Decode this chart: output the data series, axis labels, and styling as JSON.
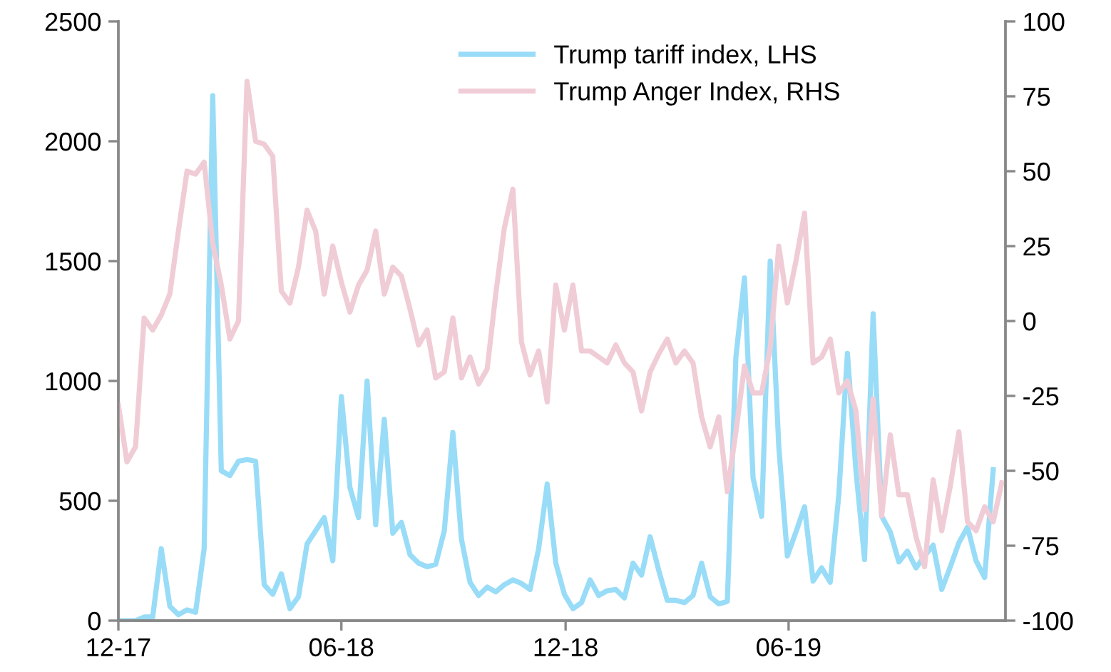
{
  "chart_data": {
    "type": "line",
    "x": [
      "2017-12-01",
      "2017-12-08",
      "2017-12-15",
      "2017-12-22",
      "2017-12-29",
      "2018-01-05",
      "2018-01-12",
      "2018-01-19",
      "2018-01-26",
      "2018-02-02",
      "2018-02-09",
      "2018-02-16",
      "2018-02-23",
      "2018-03-02",
      "2018-03-09",
      "2018-03-16",
      "2018-03-23",
      "2018-03-30",
      "2018-04-06",
      "2018-04-13",
      "2018-04-20",
      "2018-04-27",
      "2018-05-04",
      "2018-05-11",
      "2018-05-18",
      "2018-05-25",
      "2018-06-01",
      "2018-06-08",
      "2018-06-15",
      "2018-06-22",
      "2018-06-29",
      "2018-07-06",
      "2018-07-13",
      "2018-07-20",
      "2018-07-27",
      "2018-08-03",
      "2018-08-10",
      "2018-08-17",
      "2018-08-24",
      "2018-08-31",
      "2018-09-07",
      "2018-09-14",
      "2018-09-21",
      "2018-09-28",
      "2018-10-05",
      "2018-10-12",
      "2018-10-19",
      "2018-10-26",
      "2018-11-02",
      "2018-11-09",
      "2018-11-16",
      "2018-11-23",
      "2018-11-30",
      "2018-12-07",
      "2018-12-14",
      "2018-12-21",
      "2018-12-28",
      "2019-01-04",
      "2019-01-11",
      "2019-01-18",
      "2019-01-25",
      "2019-02-01",
      "2019-02-08",
      "2019-02-15",
      "2019-02-22",
      "2019-03-01",
      "2019-03-08",
      "2019-03-15",
      "2019-03-22",
      "2019-03-29",
      "2019-04-05",
      "2019-04-12",
      "2019-04-19",
      "2019-04-26",
      "2019-05-03",
      "2019-05-10",
      "2019-05-17",
      "2019-05-24",
      "2019-05-31",
      "2019-06-07",
      "2019-06-14",
      "2019-06-21",
      "2019-06-28",
      "2019-07-05",
      "2019-07-12",
      "2019-07-19",
      "2019-07-26",
      "2019-08-02",
      "2019-08-09",
      "2019-08-16",
      "2019-08-23",
      "2019-08-30",
      "2019-09-06",
      "2019-09-13",
      "2019-09-20",
      "2019-09-27",
      "2019-10-04",
      "2019-10-11",
      "2019-10-18",
      "2019-10-25",
      "2019-11-01",
      "2019-11-08",
      "2019-11-15",
      "2019-11-22"
    ],
    "series": [
      {
        "name": "Trump tariff index, LHS",
        "color": "#99dcf7",
        "values": [
          0,
          0,
          0,
          15,
          15,
          300,
          60,
          25,
          45,
          35,
          300,
          2190,
          625,
          605,
          665,
          672,
          665,
          150,
          110,
          195,
          50,
          100,
          320,
          375,
          430,
          250,
          935,
          555,
          430,
          1000,
          400,
          840,
          365,
          410,
          275,
          240,
          225,
          235,
          375,
          785,
          340,
          160,
          105,
          140,
          120,
          150,
          170,
          155,
          130,
          300,
          570,
          240,
          110,
          50,
          75,
          170,
          105,
          125,
          130,
          95,
          240,
          190,
          350,
          210,
          85,
          85,
          75,
          105,
          240,
          100,
          70,
          80,
          1100,
          1430,
          595,
          435,
          1500,
          725,
          270,
          370,
          475,
          165,
          220,
          160,
          525,
          1115,
          625,
          255,
          1280,
          435,
          370,
          245,
          290,
          220,
          270,
          315,
          130,
          225,
          325,
          390,
          250,
          180,
          630,
          null
        ]
      },
      {
        "name": "Trump Anger Index, RHS",
        "color": "#f0cdd6",
        "axis": "y2",
        "values": [
          -28,
          -47,
          -42,
          1,
          -3,
          2,
          9,
          30,
          50,
          49,
          53,
          26,
          12,
          -6,
          0,
          80,
          60,
          59,
          55,
          10,
          6,
          18,
          37,
          30,
          9,
          25,
          13,
          3,
          12,
          17,
          30,
          9,
          18,
          15,
          4,
          -8,
          -3,
          -19,
          -17,
          1,
          -19,
          -12,
          -21,
          -16,
          9,
          31,
          44,
          -7,
          -18,
          -10,
          -27,
          12,
          -3,
          12,
          -10,
          -10,
          -12,
          -14,
          -8,
          -14,
          -17,
          -30,
          -17,
          -11,
          -6,
          -14,
          -10,
          -14,
          -32,
          -42,
          -32,
          -57,
          -37,
          -15,
          -24,
          -24,
          -9,
          25,
          6,
          20,
          36,
          -14,
          -12,
          -6,
          -24,
          -20,
          -30,
          -63,
          -26,
          -65,
          -38,
          -58,
          -58,
          -72,
          -82,
          -53,
          -70,
          -55,
          -37,
          -67,
          -70,
          -62,
          -67,
          -54
        ]
      }
    ],
    "xlim": [
      "2017-12-01",
      "2019-11-25"
    ],
    "xticks": [
      {
        "value": "2017-12-01",
        "label": "12-17"
      },
      {
        "value": "2018-06-01",
        "label": "06-18"
      },
      {
        "value": "2018-12-01",
        "label": "12-18"
      },
      {
        "value": "2019-06-01",
        "label": "06-19"
      }
    ],
    "ylim": [
      0,
      2500
    ],
    "yticks": [
      0,
      500,
      1000,
      1500,
      2000,
      2500
    ],
    "y2lim": [
      -100,
      100
    ],
    "y2ticks": [
      -100,
      -75,
      -50,
      -25,
      0,
      25,
      50,
      75,
      100
    ],
    "grid": false,
    "legend": "top",
    "line_style": "solid",
    "marker": "none"
  }
}
